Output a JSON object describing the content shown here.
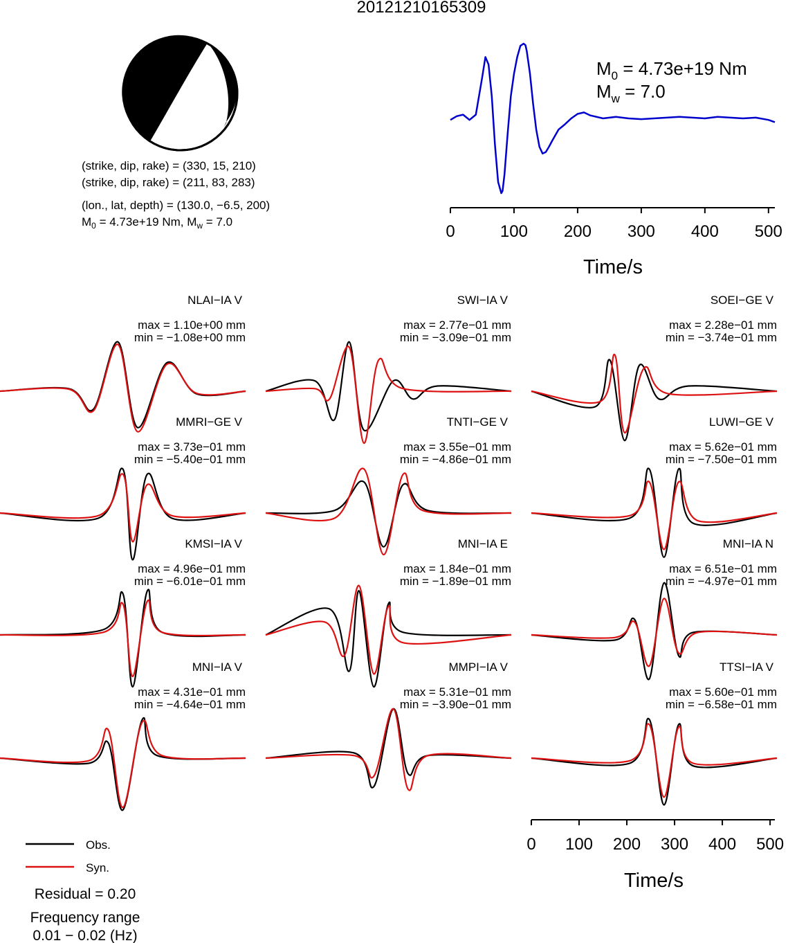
{
  "title": "20121210165309",
  "mechanism": {
    "plane1": "(strike, dip, rake) = (330, 15, 210)",
    "plane2": "(strike, dip, rake) = (211, 83, 283)",
    "location": "(lon., lat, depth) = (130.0, −6.5, 200)",
    "moment_line": {
      "m0_label": "M",
      "m0_sub": "0",
      "m0_rest": " = 4.73e+19 Nm, M",
      "mw_sub": "w",
      "mw_rest": " = 7.0"
    }
  },
  "stf": {
    "m0": {
      "main": "M",
      "sub": "0",
      "rest": " = 4.73e+19 Nm"
    },
    "mw": {
      "main": "M",
      "sub": "w",
      "rest": " = 7.0"
    },
    "color": "#0000cc"
  },
  "colors": {
    "observed": "#000000",
    "synthetic": "#dd1111",
    "stf": "#0000cc"
  },
  "legend": {
    "obs": "Obs.",
    "syn": "Syn."
  },
  "residual": "Residual = 0.20",
  "freq_title": "Frequency range",
  "freq_value": "0.01 − 0.02 (Hz)",
  "chart_data": [
    {
      "type": "line",
      "name": "source-time-function",
      "xlabel": "Time/s",
      "ylabel": "",
      "xlim": [
        0,
        510
      ],
      "xticks": [
        "0",
        "100",
        "200",
        "300",
        "400",
        "500"
      ],
      "series": [
        {
          "name": "",
          "x": [
            0,
            10,
            20,
            30,
            40,
            50,
            55,
            60,
            65,
            70,
            75,
            80,
            82,
            85,
            90,
            95,
            100,
            105,
            110,
            115,
            118,
            120,
            125,
            130,
            135,
            140,
            145,
            150,
            155,
            160,
            170,
            180,
            190,
            200,
            210,
            220,
            240,
            260,
            280,
            300,
            320,
            340,
            360,
            380,
            400,
            420,
            440,
            460,
            480,
            500,
            510
          ],
          "y": [
            -0.02,
            0.03,
            0.05,
            -0.02,
            0.05,
            0.55,
            0.82,
            0.72,
            0.3,
            -0.35,
            -0.85,
            -1.0,
            -0.97,
            -0.75,
            -0.2,
            0.3,
            0.6,
            0.82,
            0.97,
            1.0,
            0.98,
            0.9,
            0.6,
            0.2,
            -0.15,
            -0.38,
            -0.47,
            -0.45,
            -0.38,
            -0.3,
            -0.15,
            -0.08,
            0.0,
            0.06,
            0.08,
            0.04,
            0.0,
            0.02,
            0.0,
            -0.01,
            0.0,
            0.01,
            0.02,
            0.01,
            0.0,
            0.02,
            0.01,
            0.0,
            0.01,
            -0.02,
            -0.05
          ]
        }
      ]
    },
    {
      "type": "line",
      "name": "waveform-fits",
      "xlabel": "Time/s",
      "xlim": [
        0,
        510
      ],
      "xticks": [
        "0",
        "100",
        "200",
        "300",
        "400",
        "500"
      ],
      "stations": [
        {
          "label": "NLAI−IA V",
          "max": "max = 1.10e+00 mm",
          "min": "min = −1.08e+00 mm",
          "obs": [
            [
              14,
              0.05
            ],
            [
              19,
              -0.35
            ],
            [
              24,
              0.95
            ],
            [
              28,
              -0.7
            ],
            [
              34,
              0.55
            ],
            [
              40,
              -0.05
            ]
          ],
          "syn": [
            [
              14,
              0.04
            ],
            [
              19,
              -0.38
            ],
            [
              24,
              0.9
            ],
            [
              28,
              -0.78
            ],
            [
              34,
              0.52
            ],
            [
              40,
              -0.04
            ]
          ]
        },
        {
          "label": "SWI−IA V",
          "max": "max = 2.77e−01 mm",
          "min": "min = −3.09e−01 mm",
          "obs": [
            [
              10,
              0.2
            ],
            [
              14,
              -0.55
            ],
            [
              17,
              0.95
            ],
            [
              20,
              -0.75
            ],
            [
              26,
              0.2
            ],
            [
              30,
              -0.15
            ],
            [
              35,
              0.1
            ]
          ],
          "syn": [
            [
              10,
              0.05
            ],
            [
              13,
              -0.15
            ],
            [
              17,
              0.85
            ],
            [
              20,
              -1.0
            ],
            [
              23,
              0.6
            ],
            [
              28,
              0.05
            ]
          ]
        },
        {
          "label": "SOEI−GE V",
          "max": "max = 2.28e−01 mm",
          "min": "min = −3.74e−01 mm",
          "obs": [
            [
              13,
              -0.3
            ],
            [
              16,
              0.6
            ],
            [
              19,
              -0.95
            ],
            [
              22,
              0.5
            ],
            [
              26,
              -0.15
            ],
            [
              32,
              0.1
            ]
          ],
          "syn": [
            [
              14,
              -0.2
            ],
            [
              17,
              0.7
            ],
            [
              19,
              -0.8
            ],
            [
              23,
              0.45
            ],
            [
              28,
              -0.05
            ]
          ]
        },
        {
          "label": "MMRI−GE V",
          "max": "max = 3.73e−01 mm",
          "min": "min = −5.40e−01 mm",
          "obs": [
            [
              20,
              -0.1
            ],
            [
              25,
              0.85
            ],
            [
              27,
              -0.9
            ],
            [
              30,
              0.75
            ],
            [
              35,
              -0.1
            ]
          ],
          "syn": [
            [
              20,
              -0.05
            ],
            [
              25,
              0.75
            ],
            [
              27,
              -0.55
            ],
            [
              30,
              0.55
            ],
            [
              35,
              -0.05
            ]
          ]
        },
        {
          "label": "TNTI−GE V",
          "max": "max = 3.55e−01 mm",
          "min": "min = −4.86e−01 mm",
          "obs": [
            [
              14,
              0.05
            ],
            [
              20,
              0.6
            ],
            [
              24,
              -0.65
            ],
            [
              28,
              0.55
            ],
            [
              33,
              0.05
            ]
          ],
          "syn": [
            [
              14,
              -0.1
            ],
            [
              20,
              0.85
            ],
            [
              24,
              -0.8
            ],
            [
              28,
              0.75
            ],
            [
              32,
              0.05
            ]
          ]
        },
        {
          "label": "LUWI−GE V",
          "max": "max = 5.62e−01 mm",
          "min": "min = −7.50e−01 mm",
          "obs": [
            [
              20,
              -0.1
            ],
            [
              24,
              0.85
            ],
            [
              27,
              -0.85
            ],
            [
              30,
              0.85
            ],
            [
              33,
              -0.2
            ]
          ],
          "syn": [
            [
              20,
              -0.05
            ],
            [
              24,
              0.6
            ],
            [
              27,
              -0.7
            ],
            [
              30,
              0.6
            ],
            [
              34,
              -0.15
            ]
          ]
        },
        {
          "label": "KMSI−IA V",
          "max": "max = 4.96e−01 mm",
          "min": "min = −6.01e−01 mm",
          "obs": [
            [
              21,
              0.1
            ],
            [
              25,
              0.8
            ],
            [
              27,
              -1.0
            ],
            [
              30,
              0.85
            ],
            [
              33,
              0.05
            ]
          ],
          "syn": [
            [
              21,
              0.05
            ],
            [
              25,
              0.6
            ],
            [
              27,
              -0.8
            ],
            [
              30,
              0.65
            ],
            [
              33,
              0.05
            ]
          ]
        },
        {
          "label": "MNI−IA E",
          "max": "max = 1.84e−01 mm",
          "min": "min = −1.89e−01 mm",
          "obs": [
            [
              13,
              0.5
            ],
            [
              17,
              -0.7
            ],
            [
              19,
              0.85
            ],
            [
              22,
              -1.0
            ],
            [
              25,
              0.6
            ],
            [
              28,
              0.05
            ]
          ],
          "syn": [
            [
              12,
              0.25
            ],
            [
              16,
              -0.4
            ],
            [
              19,
              0.95
            ],
            [
              22,
              -0.75
            ],
            [
              25,
              0.55
            ],
            [
              28,
              -0.15
            ]
          ]
        },
        {
          "label": "MNI−IA N",
          "max": "max = 6.51e−01 mm",
          "min": "min = −4.97e−01 mm",
          "obs": [
            [
              17,
              -0.1
            ],
            [
              21,
              0.3
            ],
            [
              24,
              -0.85
            ],
            [
              27,
              1.0
            ],
            [
              30,
              -0.4
            ],
            [
              33,
              0.05
            ]
          ],
          "syn": [
            [
              17,
              -0.05
            ],
            [
              21,
              0.25
            ],
            [
              24,
              -0.6
            ],
            [
              27,
              0.7
            ],
            [
              30,
              -0.35
            ],
            [
              34,
              0.05
            ]
          ]
        },
        {
          "label": "MNI−IA V",
          "max": "max = 4.31e−01 mm",
          "min": "min = −4.64e−01 mm",
          "obs": [
            [
              18,
              -0.1
            ],
            [
              22,
              0.3
            ],
            [
              25,
              -1.0
            ],
            [
              29,
              0.75
            ],
            [
              32,
              0.05
            ]
          ],
          "syn": [
            [
              18,
              -0.05
            ],
            [
              22,
              0.55
            ],
            [
              25,
              -0.95
            ],
            [
              29,
              0.7
            ],
            [
              33,
              0.05
            ]
          ]
        },
        {
          "label": "MMPI−IA V",
          "max": "max = 5.31e−01 mm",
          "min": "min = −3.90e−01 mm",
          "obs": [
            [
              18,
              0.1
            ],
            [
              22,
              -0.55
            ],
            [
              26,
              0.95
            ],
            [
              29,
              -0.3
            ],
            [
              33,
              0.05
            ]
          ],
          "syn": [
            [
              18,
              0.05
            ],
            [
              22,
              -0.35
            ],
            [
              26,
              0.95
            ],
            [
              29,
              -0.6
            ],
            [
              33,
              0.05
            ]
          ]
        },
        {
          "label": "TTSI−IA V",
          "max": "max = 5.60e−01 mm",
          "min": "min = −6.58e−01 mm",
          "obs": [
            [
              20,
              -0.1
            ],
            [
              24,
              0.75
            ],
            [
              27,
              -0.9
            ],
            [
              30,
              0.65
            ],
            [
              33,
              -0.15
            ]
          ],
          "syn": [
            [
              20,
              -0.05
            ],
            [
              24,
              0.65
            ],
            [
              27,
              -0.75
            ],
            [
              30,
              0.6
            ],
            [
              33,
              -0.1
            ]
          ]
        }
      ]
    }
  ]
}
